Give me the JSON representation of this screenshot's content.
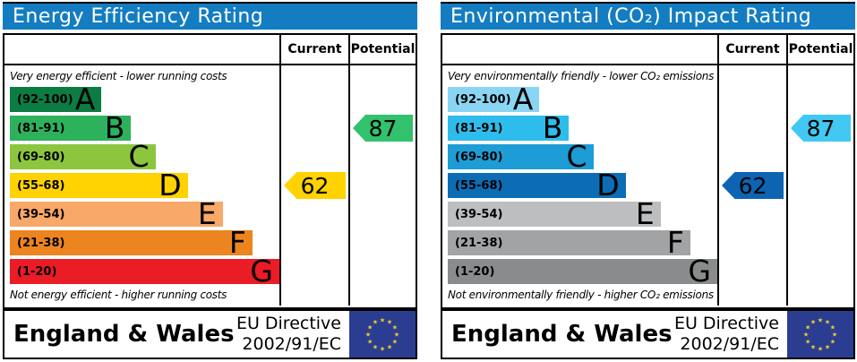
{
  "chart_data": [
    {
      "type": "bar",
      "title": "Energy Efficiency Rating",
      "categories": [
        "A (92-100)",
        "B (81-91)",
        "C (69-80)",
        "D (55-68)",
        "E (39-54)",
        "F (21-38)",
        "G (1-20)"
      ],
      "bar_lengths_pct": [
        34,
        45,
        54,
        66,
        79,
        90,
        100
      ],
      "current": {
        "value": 62,
        "band": "D"
      },
      "potential": {
        "value": 87,
        "band": "B"
      },
      "top_note": "Very energy efficient - lower running costs",
      "bottom_note": "Not energy efficient - higher running costs",
      "region": "England & Wales",
      "directive": "EU Directive 2002/91/EC",
      "legend_position": "columns-right",
      "grid": false
    },
    {
      "type": "bar",
      "title": "Environmental (CO₂) Impact Rating",
      "categories": [
        "A (92-100)",
        "B (81-91)",
        "C (69-80)",
        "D (55-68)",
        "E (39-54)",
        "F (21-38)",
        "G (1-20)"
      ],
      "bar_lengths_pct": [
        34,
        45,
        54,
        66,
        79,
        90,
        100
      ],
      "current": {
        "value": 62,
        "band": "D"
      },
      "potential": {
        "value": 87,
        "band": "B"
      },
      "top_note": "Very environmentally friendly - lower CO₂ emissions",
      "bottom_note": "Not environmentally friendly - higher CO₂ emissions",
      "region": "England & Wales",
      "directive": "EU Directive 2002/91/EC",
      "legend_position": "columns-right",
      "grid": false
    }
  ],
  "panels": [
    {
      "title": "Energy Efficiency Rating",
      "columns": {
        "current": "Current",
        "potential": "Potential"
      },
      "top_caption": "Very energy efficient - lower running costs",
      "bottom_caption": "Not energy efficient - higher running costs",
      "bands": [
        {
          "range": "(92-100)",
          "letter": "A",
          "color": "#0c7c43",
          "width_pct": 34
        },
        {
          "range": "(81-91)",
          "letter": "B",
          "color": "#2eb15c",
          "width_pct": 45
        },
        {
          "range": "(69-80)",
          "letter": "C",
          "color": "#8cc63f",
          "width_pct": 54
        },
        {
          "range": "(55-68)",
          "letter": "D",
          "color": "#ffd200",
          "width_pct": 66
        },
        {
          "range": "(39-54)",
          "letter": "E",
          "color": "#f8a868",
          "width_pct": 79
        },
        {
          "range": "(21-38)",
          "letter": "F",
          "color": "#ec8420",
          "width_pct": 90
        },
        {
          "range": "(1-20)",
          "letter": "G",
          "color": "#ea1c25",
          "width_pct": 100
        }
      ],
      "current": {
        "value": "62",
        "row": 3,
        "color": "#ffd200"
      },
      "potential": {
        "value": "87",
        "row": 1,
        "color": "#32c16c"
      },
      "footer": {
        "region": "England & Wales",
        "directive_line1": "EU Directive",
        "directive_line2": "2002/91/EC"
      }
    },
    {
      "title": "Environmental (CO₂) Impact Rating",
      "columns": {
        "current": "Current",
        "potential": "Potential"
      },
      "top_caption": "Very environmentally friendly - lower CO₂ emissions",
      "bottom_caption": "Not environmentally friendly - higher CO₂ emissions",
      "bands": [
        {
          "range": "(92-100)",
          "letter": "A",
          "color": "#8ad5f3",
          "width_pct": 34
        },
        {
          "range": "(81-91)",
          "letter": "B",
          "color": "#2ebcec",
          "width_pct": 45
        },
        {
          "range": "(69-80)",
          "letter": "C",
          "color": "#1e9cd6",
          "width_pct": 54
        },
        {
          "range": "(55-68)",
          "letter": "D",
          "color": "#0d6db4",
          "width_pct": 66
        },
        {
          "range": "(39-54)",
          "letter": "E",
          "color": "#bdbebf",
          "width_pct": 79
        },
        {
          "range": "(21-38)",
          "letter": "F",
          "color": "#a2a3a5",
          "width_pct": 90
        },
        {
          "range": "(1-20)",
          "letter": "G",
          "color": "#898b8d",
          "width_pct": 100
        }
      ],
      "current": {
        "value": "62",
        "row": 3,
        "color": "#0d64b2"
      },
      "potential": {
        "value": "87",
        "row": 1,
        "color": "#41c8f3"
      },
      "footer": {
        "region": "England & Wales",
        "directive_line1": "EU Directive",
        "directive_line2": "2002/91/EC"
      }
    }
  ],
  "colors": {
    "header_blue": "#147dc2",
    "border": "#000000",
    "eu_flag_blue": "#2b3d90",
    "eu_flag_star": "#f3d02c"
  }
}
